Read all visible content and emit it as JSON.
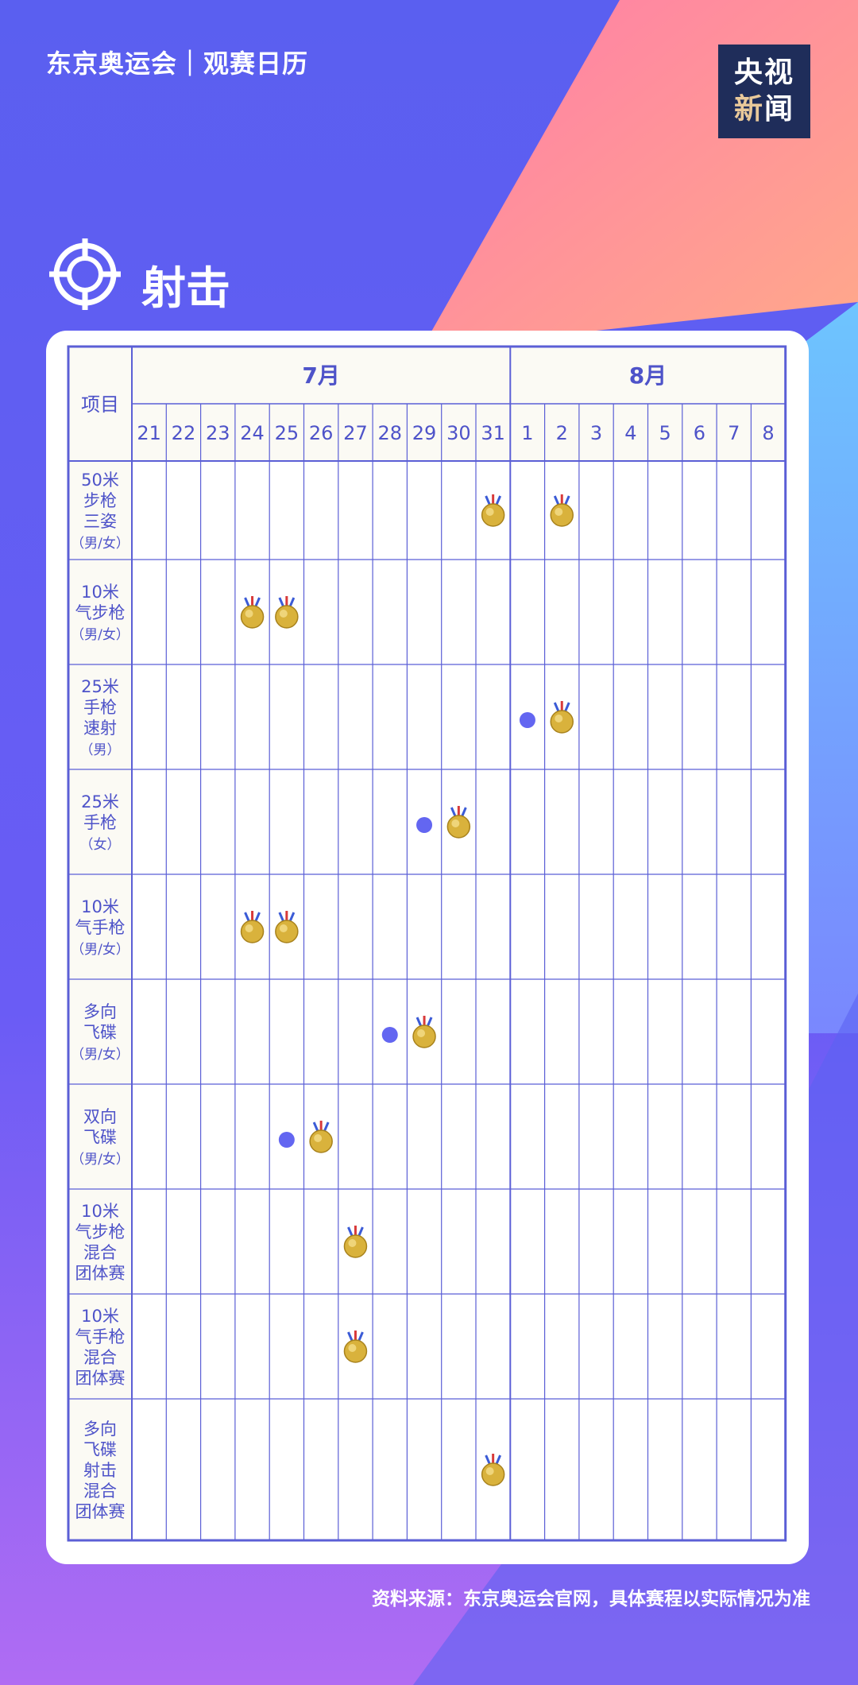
{
  "header": {
    "title": "东京奥运会｜观赛日历"
  },
  "logo": {
    "line1": "央视",
    "line2a": "新",
    "line2b": "闻"
  },
  "section": {
    "title": "射击",
    "icon": "target-icon"
  },
  "table": {
    "corner_label": "项目",
    "months": [
      {
        "label": "7月",
        "span": 11
      },
      {
        "label": "8月",
        "span": 8
      }
    ],
    "days": [
      "21",
      "22",
      "23",
      "24",
      "25",
      "26",
      "27",
      "28",
      "29",
      "30",
      "31",
      "1",
      "2",
      "3",
      "4",
      "5",
      "6",
      "7",
      "8"
    ],
    "events": [
      {
        "name": [
          "50米",
          "步枪",
          "三姿",
          "（男/女）"
        ],
        "competition_days": [],
        "medal_days": [
          "31",
          "2"
        ]
      },
      {
        "name": [
          "10米",
          "气步枪",
          "（男/女）"
        ],
        "competition_days": [],
        "medal_days": [
          "24",
          "25"
        ]
      },
      {
        "name": [
          "25米",
          "手枪",
          "速射",
          "（男）"
        ],
        "competition_days": [
          "1"
        ],
        "medal_days": [
          "2"
        ]
      },
      {
        "name": [
          "25米",
          "手枪",
          "（女）"
        ],
        "competition_days": [
          "29"
        ],
        "medal_days": [
          "30"
        ]
      },
      {
        "name": [
          "10米",
          "气手枪",
          "（男/女）"
        ],
        "competition_days": [],
        "medal_days": [
          "24",
          "25"
        ]
      },
      {
        "name": [
          "多向",
          "飞碟",
          "（男/女）"
        ],
        "competition_days": [
          "28"
        ],
        "medal_days": [
          "29"
        ]
      },
      {
        "name": [
          "双向",
          "飞碟",
          "（男/女）"
        ],
        "competition_days": [
          "25"
        ],
        "medal_days": [
          "26"
        ]
      },
      {
        "name": [
          "10米",
          "气步枪",
          "混合",
          "团体赛"
        ],
        "competition_days": [],
        "medal_days": [
          "27"
        ]
      },
      {
        "name": [
          "10米",
          "气手枪",
          "混合",
          "团体赛"
        ],
        "competition_days": [],
        "medal_days": [
          "27"
        ]
      },
      {
        "name": [
          "多向",
          "飞碟",
          "射击",
          "混合",
          "团体赛"
        ],
        "competition_days": [],
        "medal_days": [
          "31"
        ]
      }
    ]
  },
  "footer": {
    "source": "资料来源：东京奥运会官网，具体赛程以实际情况为准"
  },
  "colors": {
    "grid_line": "#5b5fd6",
    "text": "#4e53c9",
    "header_fill": "#fbfaf4",
    "competition_dot": "#6366f1",
    "medal_gold": "#d9b23c"
  }
}
